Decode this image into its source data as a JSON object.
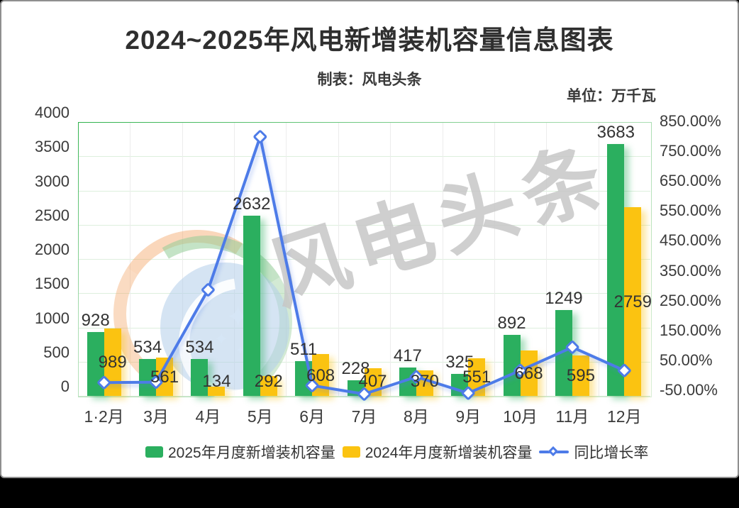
{
  "header": {
    "title": "2024~2025年风电新增装机容量信息图表",
    "subtitle": "制表：风电头条",
    "unit_label": "单位：万千瓦"
  },
  "watermark": {
    "text": "风电头条",
    "sparkle": "✦"
  },
  "colors": {
    "bar_2025": "#2baf5f",
    "bar_2025_shadow": "rgba(46,176,96,0.40)",
    "bar_2024": "#fbc311",
    "bar_2024_shadow": "rgba(250,195,20,0.40)",
    "growth_line": "#4d7be8",
    "grid_h": "#ddefdd",
    "grid_v": "#ececec",
    "text": "#333333"
  },
  "chart_data": {
    "type": "combo-bar-line",
    "title": "2024~2025年风电新增装机容量信息图表",
    "categories": [
      "1·2月",
      "3月",
      "4月",
      "5月",
      "6月",
      "7月",
      "8月",
      "9月",
      "10月",
      "11月",
      "12月"
    ],
    "series": [
      {
        "name": "2025年月度新增装机容量",
        "type": "bar",
        "color": "#2baf5f",
        "values": [
          928,
          534,
          534,
          2632,
          511,
          228,
          417,
          325,
          892,
          1249,
          3683
        ]
      },
      {
        "name": "2024年月度新增装机容量",
        "type": "bar",
        "color": "#fbc311",
        "values": [
          989,
          561,
          134,
          292,
          608,
          407,
          370,
          551,
          668,
          595,
          2759
        ]
      },
      {
        "name": "同比增长率",
        "type": "line",
        "color": "#4d7be8",
        "axis": "right",
        "values": [
          -6.2,
          -4.8,
          298.5,
          801.4,
          -16.0,
          -44.0,
          12.7,
          -41.0,
          33.5,
          109.9,
          33.5
        ]
      }
    ],
    "left_axis": {
      "min": 0,
      "max": 4000,
      "step": 500,
      "ticks": [
        "4000",
        "3500",
        "3000",
        "2500",
        "2000",
        "1500",
        "1000",
        "500",
        "0"
      ]
    },
    "right_axis": {
      "min": -50,
      "max": 850,
      "step": 100,
      "ticks": [
        "850.00%",
        "750.00%",
        "650.00%",
        "550.00%",
        "450.00%",
        "350.00%",
        "250.00%",
        "150.00%",
        "50.00%",
        "-50.00%"
      ]
    },
    "grid": true,
    "legend_position": "bottom"
  }
}
